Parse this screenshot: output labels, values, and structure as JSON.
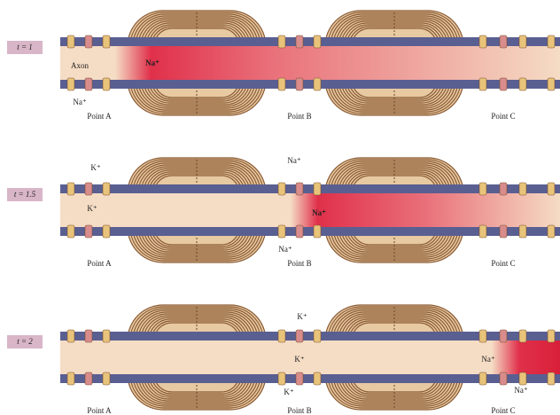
{
  "panels": [
    {
      "time": "t = 1",
      "axon": "Axon",
      "ions": [
        "Na⁺",
        "Na⁺"
      ],
      "points": [
        "Point A",
        "Point B",
        "Point C"
      ]
    },
    {
      "time": "t = 1.5",
      "ions": [
        "K⁺",
        "K⁺",
        "Na⁺",
        "Na⁺",
        "Na⁺"
      ],
      "points": [
        "Point A",
        "Point B",
        "Point C"
      ]
    },
    {
      "time": "t = 2",
      "ions": [
        "K⁺",
        "K⁺",
        "K⁺",
        "Na⁺",
        "Na⁺"
      ],
      "points": [
        "Point A",
        "Point B",
        "Point C"
      ]
    }
  ]
}
